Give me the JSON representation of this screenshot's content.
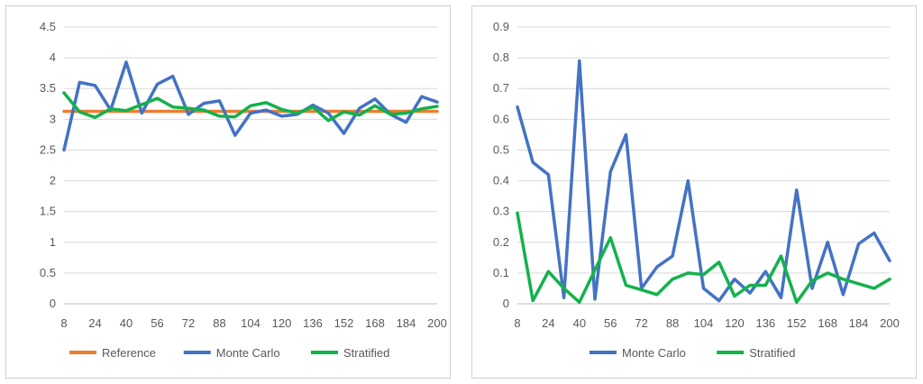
{
  "chart_data": [
    {
      "type": "line",
      "x": [
        8,
        16,
        24,
        32,
        40,
        48,
        56,
        64,
        72,
        80,
        88,
        96,
        104,
        112,
        120,
        128,
        136,
        144,
        152,
        160,
        168,
        176,
        184,
        192,
        200
      ],
      "x_tick_labels": [
        "8",
        "24",
        "40",
        "56",
        "72",
        "88",
        "104",
        "120",
        "136",
        "152",
        "168",
        "184",
        "200"
      ],
      "ylim": [
        0,
        4.5
      ],
      "y_ticks": [
        "0",
        "0.5",
        "1",
        "1.5",
        "2",
        "2.5",
        "3",
        "3.5",
        "4",
        "4.5"
      ],
      "grid": true,
      "legend": "bottom",
      "series": [
        {
          "name": "Reference",
          "color": "#ED7D31",
          "values": [
            3.13,
            3.13,
            3.13,
            3.13,
            3.13,
            3.13,
            3.13,
            3.13,
            3.13,
            3.13,
            3.13,
            3.13,
            3.13,
            3.13,
            3.13,
            3.13,
            3.13,
            3.13,
            3.13,
            3.13,
            3.13,
            3.13,
            3.13,
            3.13,
            3.13
          ]
        },
        {
          "name": "Monte Carlo",
          "color": "#4472C4",
          "values": [
            2.5,
            3.6,
            3.55,
            3.15,
            3.93,
            3.1,
            3.57,
            3.7,
            3.08,
            3.26,
            3.3,
            2.74,
            3.1,
            3.15,
            3.05,
            3.08,
            3.23,
            3.1,
            2.77,
            3.18,
            3.33,
            3.08,
            2.95,
            3.37,
            3.28
          ]
        },
        {
          "name": "Stratified",
          "color": "#13B24B",
          "values": [
            3.43,
            3.12,
            3.03,
            3.17,
            3.14,
            3.24,
            3.34,
            3.2,
            3.18,
            3.15,
            3.05,
            3.04,
            3.22,
            3.27,
            3.16,
            3.1,
            3.2,
            2.98,
            3.12,
            3.07,
            3.22,
            3.08,
            3.1,
            3.17,
            3.21
          ]
        }
      ]
    },
    {
      "type": "line",
      "x": [
        8,
        16,
        24,
        32,
        40,
        48,
        56,
        64,
        72,
        80,
        88,
        96,
        104,
        112,
        120,
        128,
        136,
        144,
        152,
        160,
        168,
        176,
        184,
        192,
        200
      ],
      "x_tick_labels": [
        "8",
        "24",
        "40",
        "56",
        "72",
        "88",
        "104",
        "120",
        "136",
        "152",
        "168",
        "184",
        "200"
      ],
      "ylim": [
        0,
        0.9
      ],
      "y_ticks": [
        "0",
        "0.1",
        "0.2",
        "0.3",
        "0.4",
        "0.5",
        "0.6",
        "0.7",
        "0.8",
        "0.9"
      ],
      "grid": true,
      "legend": "bottom",
      "series": [
        {
          "name": "Monte Carlo",
          "color": "#4472C4",
          "values": [
            0.64,
            0.46,
            0.42,
            0.02,
            0.79,
            0.015,
            0.43,
            0.55,
            0.05,
            0.12,
            0.155,
            0.4,
            0.05,
            0.01,
            0.08,
            0.035,
            0.105,
            0.02,
            0.37,
            0.05,
            0.2,
            0.03,
            0.195,
            0.23,
            0.14
          ]
        },
        {
          "name": "Stratified",
          "color": "#13B24B",
          "values": [
            0.295,
            0.01,
            0.105,
            0.05,
            0.005,
            0.11,
            0.215,
            0.06,
            0.045,
            0.03,
            0.08,
            0.1,
            0.095,
            0.135,
            0.025,
            0.06,
            0.06,
            0.155,
            0.005,
            0.075,
            0.1,
            0.08,
            0.065,
            0.05,
            0.08
          ]
        }
      ]
    }
  ]
}
